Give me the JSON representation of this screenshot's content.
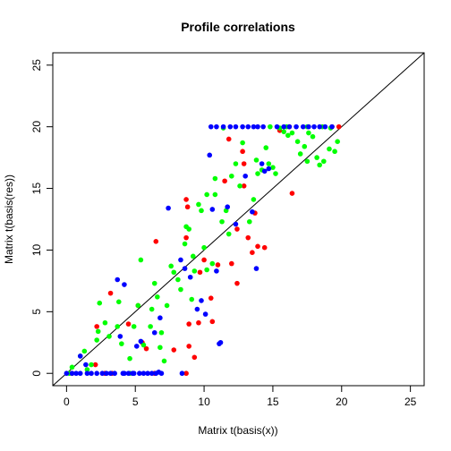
{
  "chart_data": {
    "type": "scatter",
    "title": "Profile correlations",
    "xlabel": "Matrix  t(basis(x))",
    "ylabel": "Matrix  t(basis(res))",
    "xlim": [
      -1,
      26
    ],
    "ylim": [
      -1,
      26
    ],
    "xticks": [
      "0",
      "5",
      "10",
      "15",
      "20",
      "25"
    ],
    "yticks": [
      "0",
      "5",
      "10",
      "15",
      "20",
      "25"
    ],
    "reference_line": "y = x",
    "grid": false,
    "series": [
      {
        "color": "#ff0000",
        "points": [
          [
            2.2,
            3.8
          ],
          [
            3.2,
            6.5
          ],
          [
            4.5,
            4.0
          ],
          [
            5.2,
            5.5
          ],
          [
            5.8,
            2.0
          ],
          [
            6.5,
            10.7
          ],
          [
            8.7,
            14.1
          ],
          [
            8.8,
            13.5
          ],
          [
            8.7,
            11.0
          ],
          [
            8.9,
            4.0
          ],
          [
            8.9,
            2.2
          ],
          [
            8.7,
            0.0
          ],
          [
            9.3,
            1.3
          ],
          [
            9.7,
            8.2
          ],
          [
            9.6,
            4.1
          ],
          [
            10.0,
            9.2
          ],
          [
            10.5,
            6.1
          ],
          [
            10.6,
            4.2
          ],
          [
            11.0,
            8.8
          ],
          [
            11.5,
            15.6
          ],
          [
            11.8,
            19.0
          ],
          [
            12.0,
            8.9
          ],
          [
            12.4,
            7.3
          ],
          [
            12.4,
            11.7
          ],
          [
            12.8,
            18.0
          ],
          [
            12.9,
            17.0
          ],
          [
            13.2,
            11.0
          ],
          [
            13.5,
            9.8
          ],
          [
            13.7,
            13.0
          ],
          [
            13.9,
            10.3
          ],
          [
            14.4,
            10.2
          ],
          [
            15.5,
            19.7
          ],
          [
            16.2,
            20.0
          ],
          [
            16.4,
            14.6
          ],
          [
            19.3,
            20.0
          ],
          [
            19.8,
            20.0
          ],
          [
            2.1,
            0.7
          ],
          [
            2.8,
            0.0
          ],
          [
            3.3,
            0.0
          ],
          [
            6.4,
            0.0
          ],
          [
            0.4,
            0.0
          ],
          [
            5.5,
            2.5
          ],
          [
            7.8,
            1.9
          ],
          [
            12.9,
            15.2
          ]
        ]
      },
      {
        "color": "#00ff00",
        "points": [
          [
            0.4,
            0.5
          ],
          [
            1.0,
            1.4
          ],
          [
            1.3,
            1.8
          ],
          [
            1.8,
            0.7
          ],
          [
            2.2,
            2.7
          ],
          [
            2.3,
            3.4
          ],
          [
            2.4,
            5.7
          ],
          [
            3.1,
            3.0
          ],
          [
            3.7,
            3.8
          ],
          [
            3.8,
            5.8
          ],
          [
            4.0,
            2.4
          ],
          [
            4.6,
            1.2
          ],
          [
            4.9,
            3.8
          ],
          [
            5.2,
            5.5
          ],
          [
            5.4,
            9.2
          ],
          [
            5.6,
            2.3
          ],
          [
            6.1,
            3.8
          ],
          [
            6.2,
            5.2
          ],
          [
            6.4,
            7.3
          ],
          [
            6.6,
            6.2
          ],
          [
            6.8,
            2.1
          ],
          [
            7.1,
            1.0
          ],
          [
            7.3,
            5.5
          ],
          [
            7.6,
            8.7
          ],
          [
            7.8,
            8.2
          ],
          [
            8.1,
            7.6
          ],
          [
            8.3,
            6.8
          ],
          [
            8.6,
            10.5
          ],
          [
            8.7,
            11.9
          ],
          [
            8.9,
            11.7
          ],
          [
            9.1,
            6.0
          ],
          [
            9.3,
            8.3
          ],
          [
            9.6,
            13.7
          ],
          [
            9.8,
            13.2
          ],
          [
            10.0,
            10.2
          ],
          [
            10.2,
            14.5
          ],
          [
            10.2,
            8.4
          ],
          [
            10.6,
            8.9
          ],
          [
            10.8,
            14.5
          ],
          [
            11.3,
            12.3
          ],
          [
            11.6,
            13.2
          ],
          [
            11.8,
            11.3
          ],
          [
            12.0,
            16.0
          ],
          [
            12.3,
            17.0
          ],
          [
            12.6,
            15.2
          ],
          [
            12.8,
            18.7
          ],
          [
            13.3,
            12.3
          ],
          [
            13.6,
            14.1
          ],
          [
            13.8,
            17.3
          ],
          [
            14.2,
            16.5
          ],
          [
            14.5,
            18.3
          ],
          [
            14.7,
            17.0
          ],
          [
            15.0,
            16.7
          ],
          [
            15.2,
            16.2
          ],
          [
            15.5,
            19.9
          ],
          [
            15.8,
            19.6
          ],
          [
            16.1,
            19.3
          ],
          [
            16.4,
            19.5
          ],
          [
            16.8,
            18.8
          ],
          [
            17.0,
            17.8
          ],
          [
            17.3,
            18.4
          ],
          [
            17.5,
            17.2
          ],
          [
            17.6,
            19.5
          ],
          [
            17.9,
            19.2
          ],
          [
            18.2,
            17.5
          ],
          [
            18.4,
            16.9
          ],
          [
            18.7,
            17.2
          ],
          [
            19.1,
            18.2
          ],
          [
            19.5,
            18.0
          ],
          [
            19.7,
            18.8
          ],
          [
            2.8,
            4.1
          ],
          [
            4.6,
            0.0
          ],
          [
            9.2,
            9.5
          ],
          [
            14.8,
            20.0
          ],
          [
            16.0,
            20.0
          ],
          [
            17.5,
            20.0
          ],
          [
            18.6,
            20.0
          ],
          [
            19.2,
            19.9
          ],
          [
            0.2,
            0.0
          ],
          [
            1.5,
            0.3
          ],
          [
            6.9,
            3.3
          ],
          [
            10.8,
            15.8
          ],
          [
            11.4,
            19.9
          ],
          [
            13.9,
            16.2
          ]
        ]
      },
      {
        "color": "#0000ff",
        "points": [
          [
            0.0,
            0.0
          ],
          [
            0.4,
            0.0
          ],
          [
            0.7,
            0.0
          ],
          [
            1.0,
            0.0
          ],
          [
            1.5,
            0.0
          ],
          [
            1.8,
            0.0
          ],
          [
            2.2,
            0.0
          ],
          [
            2.6,
            0.0
          ],
          [
            2.9,
            0.0
          ],
          [
            3.2,
            0.0
          ],
          [
            3.5,
            0.0
          ],
          [
            4.1,
            0.0
          ],
          [
            4.5,
            0.0
          ],
          [
            4.9,
            0.0
          ],
          [
            5.3,
            0.0
          ],
          [
            5.6,
            0.0
          ],
          [
            5.9,
            0.0
          ],
          [
            6.2,
            0.0
          ],
          [
            6.5,
            0.0
          ],
          [
            6.9,
            0.0
          ],
          [
            1.0,
            1.4
          ],
          [
            1.4,
            0.7
          ],
          [
            3.7,
            7.6
          ],
          [
            4.2,
            7.2
          ],
          [
            5.1,
            2.2
          ],
          [
            5.4,
            2.6
          ],
          [
            6.4,
            3.3
          ],
          [
            6.8,
            4.5
          ],
          [
            7.4,
            13.4
          ],
          [
            8.3,
            9.2
          ],
          [
            8.6,
            8.5
          ],
          [
            9.0,
            7.8
          ],
          [
            9.5,
            5.2
          ],
          [
            9.8,
            5.9
          ],
          [
            10.1,
            4.8
          ],
          [
            10.4,
            17.7
          ],
          [
            10.6,
            13.3
          ],
          [
            10.9,
            8.3
          ],
          [
            11.1,
            2.4
          ],
          [
            11.2,
            2.5
          ],
          [
            11.9,
            20.0
          ],
          [
            12.3,
            20.0
          ],
          [
            12.8,
            20.0
          ],
          [
            13.2,
            20.0
          ],
          [
            13.6,
            20.0
          ],
          [
            13.9,
            20.0
          ],
          [
            14.3,
            20.0
          ],
          [
            12.3,
            12.1
          ],
          [
            13.5,
            13.1
          ],
          [
            13.8,
            8.5
          ],
          [
            14.2,
            17.0
          ],
          [
            14.4,
            16.4
          ],
          [
            14.7,
            16.6
          ],
          [
            15.3,
            20.0
          ],
          [
            15.8,
            20.0
          ],
          [
            16.2,
            20.0
          ],
          [
            16.7,
            20.0
          ],
          [
            17.2,
            20.0
          ],
          [
            17.6,
            20.0
          ],
          [
            18.0,
            20.0
          ],
          [
            18.4,
            20.0
          ],
          [
            18.8,
            20.0
          ],
          [
            19.3,
            20.0
          ],
          [
            10.5,
            20.0
          ],
          [
            10.9,
            20.0
          ],
          [
            11.4,
            20.0
          ],
          [
            4.2,
            0.0
          ],
          [
            3.9,
            3.0
          ],
          [
            8.4,
            0.0
          ],
          [
            13.0,
            16.0
          ],
          [
            11.7,
            13.5
          ],
          [
            4.8,
            0.0
          ],
          [
            6.7,
            0.1
          ]
        ]
      }
    ]
  }
}
